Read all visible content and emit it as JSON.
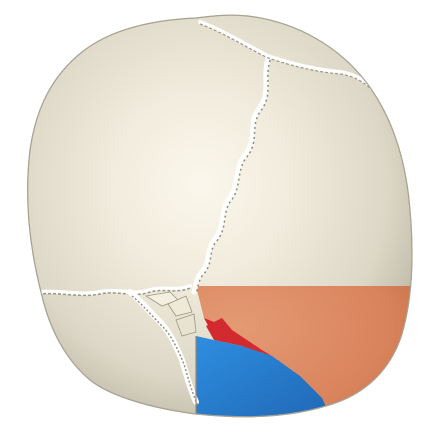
{
  "image": {
    "subject": "skull",
    "view": "posterior",
    "highlighted_regions": [
      {
        "id": "region-orange",
        "color": "#d9835c"
      },
      {
        "id": "region-red",
        "color": "#d8252c"
      },
      {
        "id": "region-blue",
        "color": "#2b7fd0"
      }
    ],
    "colors": {
      "background": "#ffffff",
      "bone_light": "#f8f3e6",
      "bone_mid": "#e5e0d0",
      "bone_dark": "#bdb8a6",
      "suture_light": "#ffffff",
      "suture_shadow": "#9a9585"
    }
  }
}
